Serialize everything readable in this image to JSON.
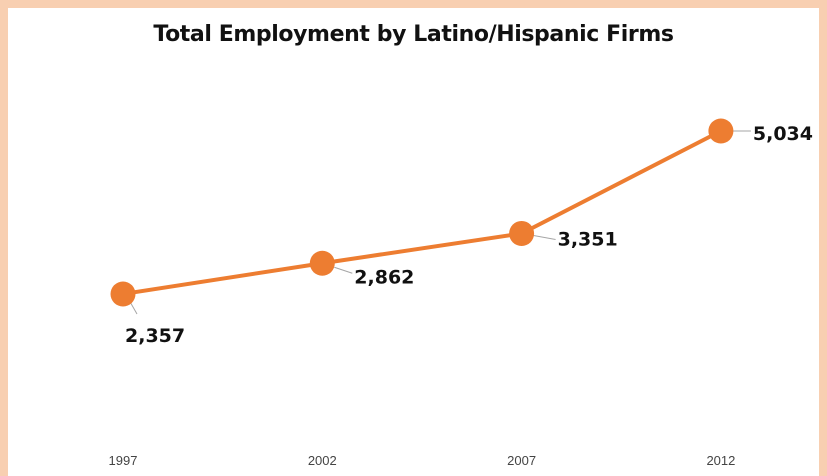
{
  "chart_data": {
    "type": "line",
    "title": "Total Employment by Latino/Hispanic Firms",
    "categories": [
      "1997",
      "2002",
      "2007",
      "2012"
    ],
    "series": [
      {
        "values": [
          2357,
          2862,
          3351,
          5034
        ]
      }
    ],
    "data_labels": [
      "2,357",
      "2,862",
      "3,351",
      "5,034"
    ],
    "xlabel": "",
    "ylabel": "",
    "grid": false,
    "legend": "none",
    "colors": {
      "line": "#ed7d31",
      "marker": "#ed7d31",
      "leader": "#a6a6a6",
      "frame": "#f8cfb1"
    }
  }
}
